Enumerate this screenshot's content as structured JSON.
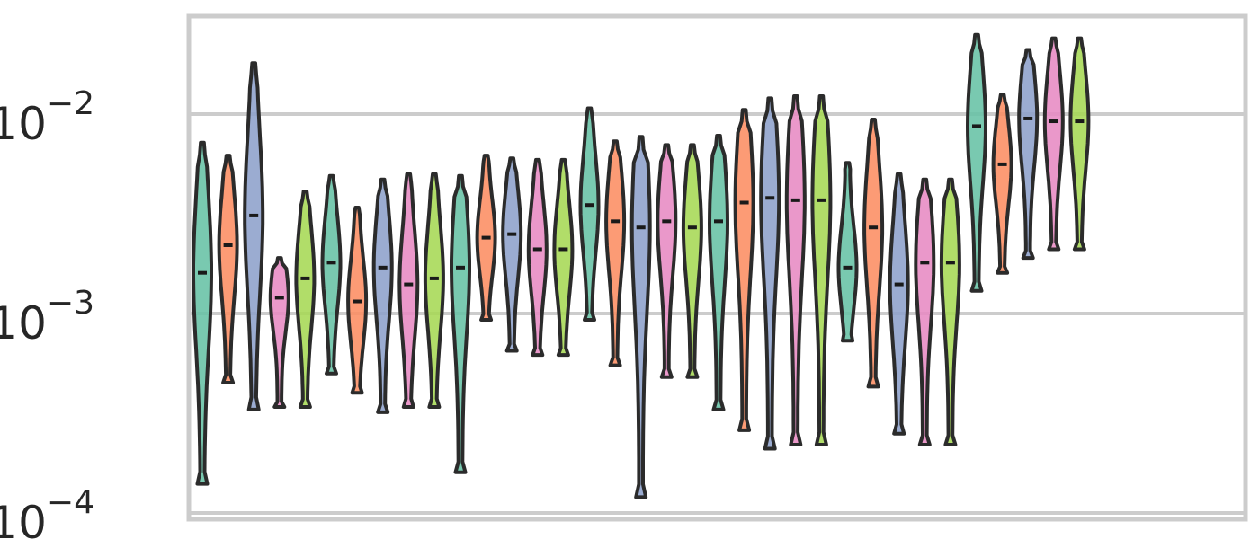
{
  "chart_data": {
    "type": "violin",
    "title": "",
    "xlabel": "",
    "ylabel": "",
    "yscale": "log",
    "ylim": [
      0.0001,
      0.03
    ],
    "grid": true,
    "y_ticks": [
      {
        "value": 0.0001,
        "base": "10",
        "exp": "−4"
      },
      {
        "value": 0.001,
        "base": "10",
        "exp": "−3"
      },
      {
        "value": 0.01,
        "base": "10",
        "exp": "−2"
      }
    ],
    "groups": 7,
    "colors": [
      "#66c2a5",
      "#fc8d62",
      "#8da0cb",
      "#e78ac3",
      "#a6d854"
    ],
    "violins": [
      {
        "group": 1,
        "series": 1,
        "min": 0.00014,
        "max": 0.0072,
        "median": 0.0016
      },
      {
        "group": 1,
        "series": 2,
        "min": 0.00045,
        "max": 0.0062,
        "median": 0.0022
      },
      {
        "group": 1,
        "series": 3,
        "min": 0.00033,
        "max": 0.018,
        "median": 0.0031
      },
      {
        "group": 1,
        "series": 4,
        "min": 0.00034,
        "max": 0.0019,
        "median": 0.0012
      },
      {
        "group": 1,
        "series": 5,
        "min": 0.00034,
        "max": 0.0041,
        "median": 0.0015
      },
      {
        "group": 2,
        "series": 1,
        "min": 0.0005,
        "max": 0.0049,
        "median": 0.0018
      },
      {
        "group": 2,
        "series": 2,
        "min": 0.0004,
        "max": 0.0034,
        "median": 0.00115
      },
      {
        "group": 2,
        "series": 3,
        "min": 0.00032,
        "max": 0.0047,
        "median": 0.0017
      },
      {
        "group": 2,
        "series": 4,
        "min": 0.00034,
        "max": 0.005,
        "median": 0.0014
      },
      {
        "group": 2,
        "series": 5,
        "min": 0.00034,
        "max": 0.005,
        "median": 0.0015
      },
      {
        "group": 3,
        "series": 1,
        "min": 0.00016,
        "max": 0.0049,
        "median": 0.0017
      },
      {
        "group": 3,
        "series": 2,
        "min": 0.00093,
        "max": 0.0062,
        "median": 0.0024
      },
      {
        "group": 3,
        "series": 3,
        "min": 0.00065,
        "max": 0.006,
        "median": 0.0025
      },
      {
        "group": 3,
        "series": 4,
        "min": 0.00062,
        "max": 0.0059,
        "median": 0.0021
      },
      {
        "group": 3,
        "series": 5,
        "min": 0.00062,
        "max": 0.0059,
        "median": 0.0021
      },
      {
        "group": 4,
        "series": 1,
        "min": 0.00093,
        "max": 0.0107,
        "median": 0.0035
      },
      {
        "group": 4,
        "series": 2,
        "min": 0.00055,
        "max": 0.0073,
        "median": 0.0029
      },
      {
        "group": 4,
        "series": 3,
        "min": 0.00012,
        "max": 0.0077,
        "median": 0.0027
      },
      {
        "group": 4,
        "series": 4,
        "min": 0.00048,
        "max": 0.007,
        "median": 0.0029
      },
      {
        "group": 4,
        "series": 5,
        "min": 0.00048,
        "max": 0.007,
        "median": 0.0027
      },
      {
        "group": 5,
        "series": 1,
        "min": 0.00033,
        "max": 0.0078,
        "median": 0.0029
      },
      {
        "group": 5,
        "series": 2,
        "min": 0.00026,
        "max": 0.0105,
        "median": 0.0036
      },
      {
        "group": 5,
        "series": 3,
        "min": 0.00021,
        "max": 0.012,
        "median": 0.0038
      },
      {
        "group": 5,
        "series": 4,
        "min": 0.00022,
        "max": 0.0123,
        "median": 0.0037
      },
      {
        "group": 5,
        "series": 5,
        "min": 0.00022,
        "max": 0.0123,
        "median": 0.0037
      },
      {
        "group": 6,
        "series": 1,
        "min": 0.00073,
        "max": 0.0057,
        "median": 0.0017
      },
      {
        "group": 6,
        "series": 2,
        "min": 0.00043,
        "max": 0.0094,
        "median": 0.0027
      },
      {
        "group": 6,
        "series": 3,
        "min": 0.00025,
        "max": 0.005,
        "median": 0.0014
      },
      {
        "group": 6,
        "series": 4,
        "min": 0.00022,
        "max": 0.0047,
        "median": 0.0018
      },
      {
        "group": 6,
        "series": 5,
        "min": 0.00022,
        "max": 0.0047,
        "median": 0.0018
      },
      {
        "group": 7,
        "series": 1,
        "min": 0.0013,
        "max": 0.025,
        "median": 0.0087
      },
      {
        "group": 7,
        "series": 2,
        "min": 0.0016,
        "max": 0.0125,
        "median": 0.0056
      },
      {
        "group": 7,
        "series": 3,
        "min": 0.0019,
        "max": 0.021,
        "median": 0.0095
      },
      {
        "group": 7,
        "series": 4,
        "min": 0.0021,
        "max": 0.024,
        "median": 0.0092
      },
      {
        "group": 7,
        "series": 5,
        "min": 0.0021,
        "max": 0.024,
        "median": 0.0092
      }
    ]
  }
}
